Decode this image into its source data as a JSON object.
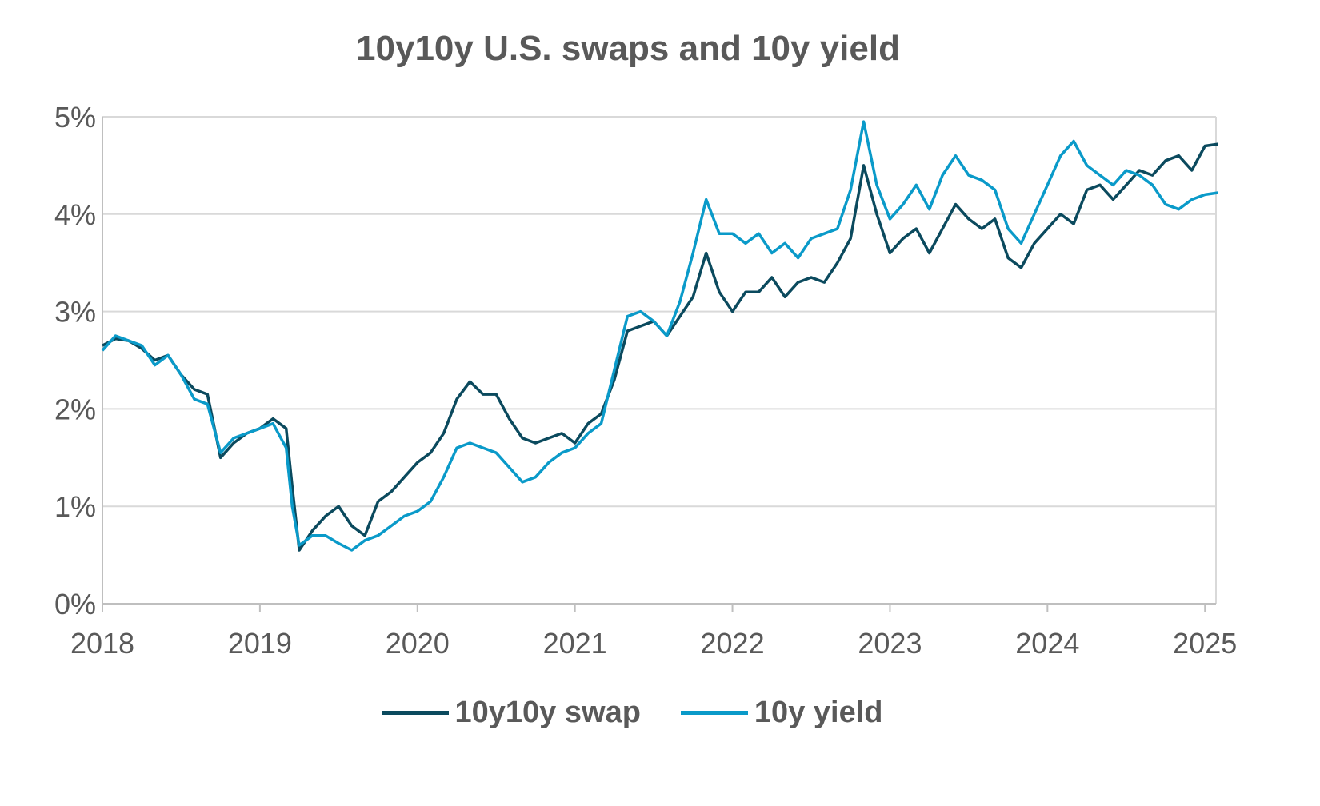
{
  "chart_data": {
    "type": "line",
    "title": "10y10y U.S. swaps and 10y yield",
    "xlabel": "",
    "ylabel": "",
    "xlim": [
      "2018-01",
      "2025-02"
    ],
    "ylim": [
      0,
      5
    ],
    "y_ticks": [
      "0%",
      "1%",
      "2%",
      "3%",
      "4%",
      "5%"
    ],
    "x_ticks": [
      "2018",
      "2019",
      "2020",
      "2021",
      "2022",
      "2023",
      "2024",
      "2025"
    ],
    "grid": "horizontal",
    "legend_position": "bottom",
    "series": [
      {
        "name": "10y10y swap",
        "color": "#0b4a5e",
        "points": [
          [
            "2018-01",
            2.65
          ],
          [
            "2018-02",
            2.72
          ],
          [
            "2018-03",
            2.7
          ],
          [
            "2018-04",
            2.62
          ],
          [
            "2018-05",
            2.5
          ],
          [
            "2018-06",
            2.55
          ],
          [
            "2018-07",
            2.35
          ],
          [
            "2018-08",
            2.2
          ],
          [
            "2018-09",
            2.15
          ],
          [
            "2018-10",
            1.5
          ],
          [
            "2018-11",
            1.65
          ],
          [
            "2018-12",
            1.75
          ],
          [
            "2019-01",
            1.8
          ],
          [
            "2019-02",
            1.9
          ],
          [
            "2019-03",
            1.8
          ],
          [
            "2019-03-15",
            1.2
          ],
          [
            "2019-04",
            0.55
          ],
          [
            "2019-05",
            0.75
          ],
          [
            "2019-06",
            0.9
          ],
          [
            "2019-07",
            1.0
          ],
          [
            "2019-08",
            0.8
          ],
          [
            "2019-09",
            0.7
          ],
          [
            "2019-10",
            1.05
          ],
          [
            "2019-11",
            1.15
          ],
          [
            "2019-12",
            1.3
          ],
          [
            "2020-01",
            1.45
          ],
          [
            "2020-02",
            1.55
          ],
          [
            "2020-03",
            1.75
          ],
          [
            "2020-04",
            2.1
          ],
          [
            "2020-05",
            2.28
          ],
          [
            "2020-06",
            2.15
          ],
          [
            "2020-07",
            2.15
          ],
          [
            "2020-08",
            1.9
          ],
          [
            "2020-09",
            1.7
          ],
          [
            "2020-10",
            1.65
          ],
          [
            "2020-11",
            1.7
          ],
          [
            "2020-12",
            1.75
          ],
          [
            "2021-01",
            1.65
          ],
          [
            "2021-02",
            1.85
          ],
          [
            "2021-03",
            1.95
          ],
          [
            "2021-04",
            2.3
          ],
          [
            "2021-05",
            2.8
          ],
          [
            "2021-06",
            2.85
          ],
          [
            "2021-07",
            2.9
          ],
          [
            "2021-08",
            2.75
          ],
          [
            "2021-09",
            2.95
          ],
          [
            "2021-10",
            3.15
          ],
          [
            "2021-11",
            3.6
          ],
          [
            "2021-12",
            3.2
          ],
          [
            "2022-01",
            3.0
          ],
          [
            "2022-02",
            3.2
          ],
          [
            "2022-03",
            3.2
          ],
          [
            "2022-04",
            3.35
          ],
          [
            "2022-05",
            3.15
          ],
          [
            "2022-06",
            3.3
          ],
          [
            "2022-07",
            3.35
          ],
          [
            "2022-08",
            3.3
          ],
          [
            "2022-09",
            3.5
          ],
          [
            "2022-10",
            3.75
          ],
          [
            "2022-11",
            4.5
          ],
          [
            "2022-12",
            4.0
          ],
          [
            "2023-01",
            3.6
          ],
          [
            "2023-02",
            3.75
          ],
          [
            "2023-03",
            3.85
          ],
          [
            "2023-04",
            3.6
          ],
          [
            "2023-05",
            3.85
          ],
          [
            "2023-06",
            4.1
          ],
          [
            "2023-07",
            3.95
          ],
          [
            "2023-08",
            3.85
          ],
          [
            "2023-09",
            3.95
          ],
          [
            "2023-10",
            3.55
          ],
          [
            "2023-11",
            3.45
          ],
          [
            "2023-12",
            3.7
          ],
          [
            "2024-01",
            3.85
          ],
          [
            "2024-02",
            4.0
          ],
          [
            "2024-03",
            3.9
          ],
          [
            "2024-04",
            4.25
          ],
          [
            "2024-05",
            4.3
          ],
          [
            "2024-06",
            4.15
          ],
          [
            "2024-07",
            4.3
          ],
          [
            "2024-08",
            4.45
          ],
          [
            "2024-09",
            4.4
          ],
          [
            "2024-10",
            4.55
          ],
          [
            "2024-11",
            4.6
          ],
          [
            "2024-12",
            4.45
          ],
          [
            "2025-01",
            4.7
          ],
          [
            "2025-02",
            4.72
          ]
        ]
      },
      {
        "name": "10y yield",
        "color": "#0a9ac9",
        "points": [
          [
            "2018-01",
            2.6
          ],
          [
            "2018-02",
            2.75
          ],
          [
            "2018-03",
            2.7
          ],
          [
            "2018-04",
            2.65
          ],
          [
            "2018-05",
            2.45
          ],
          [
            "2018-06",
            2.55
          ],
          [
            "2018-07",
            2.35
          ],
          [
            "2018-08",
            2.1
          ],
          [
            "2018-09",
            2.05
          ],
          [
            "2018-10",
            1.55
          ],
          [
            "2018-11",
            1.7
          ],
          [
            "2018-12",
            1.75
          ],
          [
            "2019-01",
            1.8
          ],
          [
            "2019-02",
            1.85
          ],
          [
            "2019-03",
            1.6
          ],
          [
            "2019-03-15",
            1.0
          ],
          [
            "2019-04",
            0.6
          ],
          [
            "2019-05",
            0.7
          ],
          [
            "2019-06",
            0.7
          ],
          [
            "2019-07",
            0.62
          ],
          [
            "2019-08",
            0.55
          ],
          [
            "2019-09",
            0.65
          ],
          [
            "2019-10",
            0.7
          ],
          [
            "2019-11",
            0.8
          ],
          [
            "2019-12",
            0.9
          ],
          [
            "2020-01",
            0.95
          ],
          [
            "2020-02",
            1.05
          ],
          [
            "2020-03",
            1.3
          ],
          [
            "2020-04",
            1.6
          ],
          [
            "2020-05",
            1.65
          ],
          [
            "2020-06",
            1.6
          ],
          [
            "2020-07",
            1.55
          ],
          [
            "2020-08",
            1.4
          ],
          [
            "2020-09",
            1.25
          ],
          [
            "2020-10",
            1.3
          ],
          [
            "2020-11",
            1.45
          ],
          [
            "2020-12",
            1.55
          ],
          [
            "2021-01",
            1.6
          ],
          [
            "2021-02",
            1.75
          ],
          [
            "2021-03",
            1.85
          ],
          [
            "2021-04",
            2.4
          ],
          [
            "2021-05",
            2.95
          ],
          [
            "2021-06",
            3.0
          ],
          [
            "2021-07",
            2.9
          ],
          [
            "2021-08",
            2.75
          ],
          [
            "2021-09",
            3.1
          ],
          [
            "2021-10",
            3.6
          ],
          [
            "2021-11",
            4.15
          ],
          [
            "2021-12",
            3.8
          ],
          [
            "2022-01",
            3.8
          ],
          [
            "2022-02",
            3.7
          ],
          [
            "2022-03",
            3.8
          ],
          [
            "2022-04",
            3.6
          ],
          [
            "2022-05",
            3.7
          ],
          [
            "2022-06",
            3.55
          ],
          [
            "2022-07",
            3.75
          ],
          [
            "2022-08",
            3.8
          ],
          [
            "2022-09",
            3.85
          ],
          [
            "2022-10",
            4.25
          ],
          [
            "2022-11",
            4.95
          ],
          [
            "2022-12",
            4.3
          ],
          [
            "2023-01",
            3.95
          ],
          [
            "2023-02",
            4.1
          ],
          [
            "2023-03",
            4.3
          ],
          [
            "2023-04",
            4.05
          ],
          [
            "2023-05",
            4.4
          ],
          [
            "2023-06",
            4.6
          ],
          [
            "2023-07",
            4.4
          ],
          [
            "2023-08",
            4.35
          ],
          [
            "2023-09",
            4.25
          ],
          [
            "2023-10",
            3.85
          ],
          [
            "2023-11",
            3.7
          ],
          [
            "2023-12",
            4.0
          ],
          [
            "2024-01",
            4.3
          ],
          [
            "2024-02",
            4.6
          ],
          [
            "2024-03",
            4.75
          ],
          [
            "2024-04",
            4.5
          ],
          [
            "2024-05",
            4.4
          ],
          [
            "2024-06",
            4.3
          ],
          [
            "2024-07",
            4.45
          ],
          [
            "2024-08",
            4.4
          ],
          [
            "2024-09",
            4.3
          ],
          [
            "2024-10",
            4.1
          ],
          [
            "2024-11",
            4.05
          ],
          [
            "2024-12",
            4.15
          ],
          [
            "2025-01",
            4.2
          ],
          [
            "2025-02",
            4.22
          ]
        ]
      }
    ]
  }
}
